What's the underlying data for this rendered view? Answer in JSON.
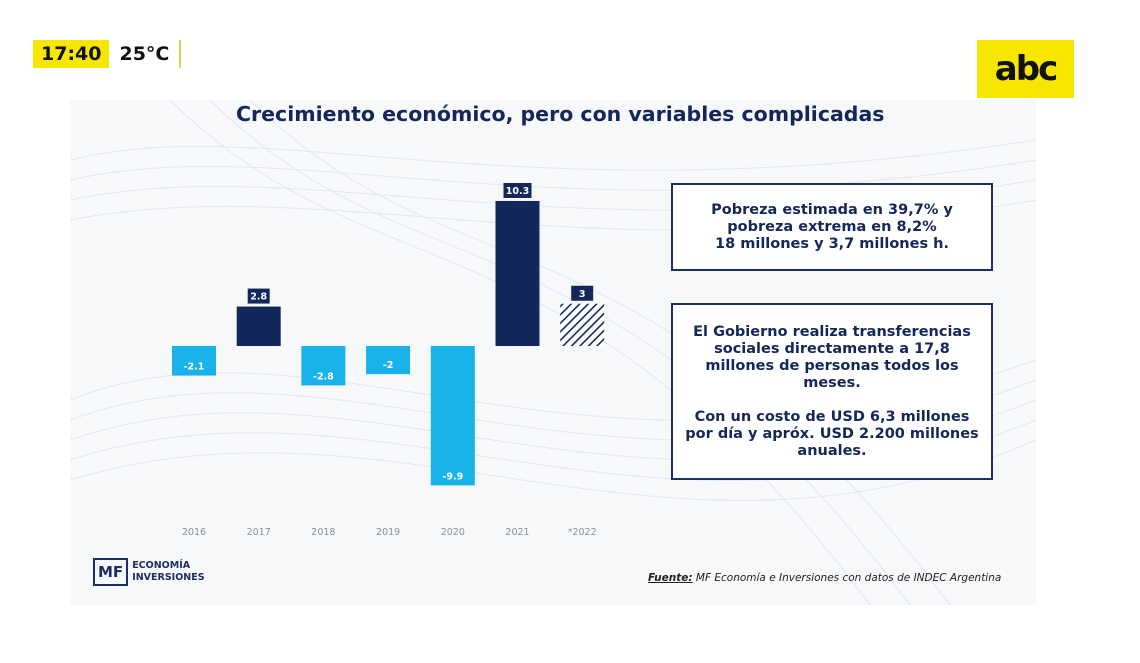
{
  "overlay": {
    "time": "17:40",
    "temperature": "25°C"
  },
  "logo": {
    "text": "abc"
  },
  "title": "Crecimiento económico, pero con variables complicadas",
  "chart_data": {
    "type": "bar",
    "categories": [
      "2016",
      "2017",
      "2018",
      "2019",
      "2020",
      "2021",
      "*2022"
    ],
    "values": [
      -2.1,
      2.8,
      -2.8,
      -2,
      -9.9,
      10.3,
      3
    ],
    "labels": [
      "-2.1",
      "2.8",
      "-2.8",
      "-2",
      "-9.9",
      "10.3",
      "3"
    ],
    "projected": [
      false,
      false,
      false,
      false,
      false,
      false,
      true
    ],
    "colors": {
      "positive": "#13275a",
      "negative": "#1ab2ea",
      "label_positive_bg": "#13275a",
      "label_negative_bg": "#1ab2ea"
    },
    "title": "",
    "xlabel": "",
    "ylabel": "",
    "ylim": [
      -9.9,
      10.3
    ]
  },
  "box1": {
    "lines": [
      "Pobreza estimada en 39,7% y",
      "pobreza extrema en 8,2%",
      "18 millones y 3,7 millones h."
    ]
  },
  "box2": {
    "para1": [
      "El Gobierno realiza transferencias",
      "sociales directamente a 17,8",
      "millones de personas todos los",
      "meses."
    ],
    "para2": [
      "Con un costo de USD 6,3 millones",
      "por día y apróx. USD 2.200 millones",
      "anuales."
    ]
  },
  "brand": {
    "mf": "MF",
    "line1": "ECONOMÍA",
    "line2": "INVERSIONES"
  },
  "source": {
    "label": "Fuente:",
    "text": " MF Economía e Inversiones con datos de INDEC Argentina"
  }
}
